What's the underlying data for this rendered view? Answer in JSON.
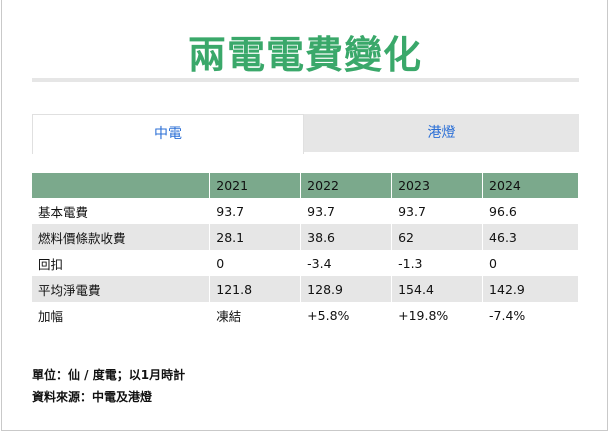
{
  "title": "兩電電費變化",
  "tabs": [
    {
      "label": "中電",
      "active": true
    },
    {
      "label": "港燈",
      "active": false
    }
  ],
  "table": {
    "header": [
      "",
      "2021",
      "2022",
      "2023",
      "2024"
    ],
    "rows": [
      [
        "基本電費",
        "93.7",
        "93.7",
        "93.7",
        "96.6"
      ],
      [
        "燃料價條款收費",
        "28.1",
        "38.6",
        "62",
        "46.3"
      ],
      [
        "回扣",
        "0",
        "-3.4",
        "-1.3",
        "0"
      ],
      [
        "平均淨電費",
        "121.8",
        "128.9",
        "154.4",
        "142.9"
      ],
      [
        "加幅",
        "凍結",
        "+5.8%",
        "+19.8%",
        "-7.4%"
      ]
    ]
  },
  "notes": {
    "unit": "單位：仙 / 度電；以1月時計",
    "source": "資料來源：中電及港燈"
  },
  "colors": {
    "title": "#3aa86a",
    "tab_text": "#2b6fd6",
    "header_bg": "#7ba98c",
    "stripe_bg": "#e6e6e6"
  }
}
